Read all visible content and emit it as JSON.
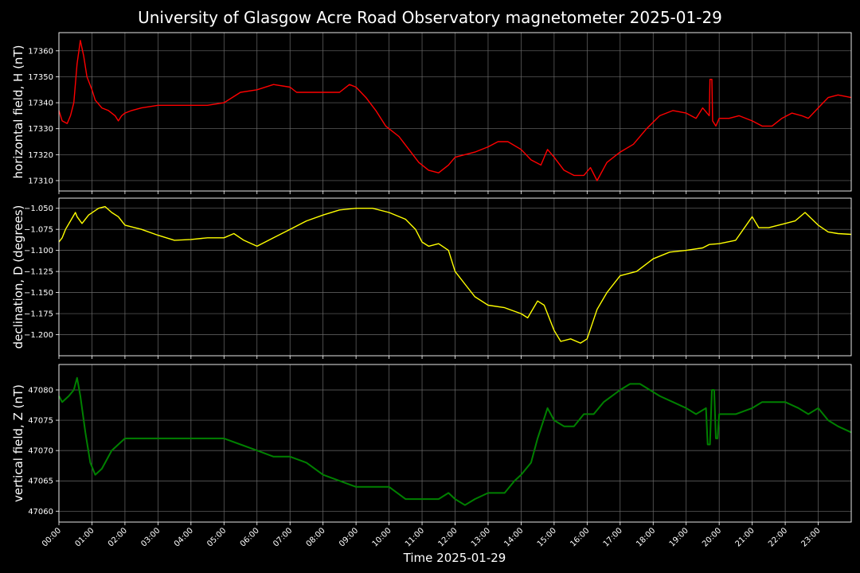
{
  "chart_data": [
    {
      "type": "line",
      "title": "University of Glasgow Acre Road Observatory magnetometer 2025-01-29",
      "ylabel": "horizontal field, H (nT)",
      "color": "#ff0000",
      "ylim": [
        17306,
        17367
      ],
      "yticks": [
        17310,
        17320,
        17330,
        17340,
        17350,
        17360
      ],
      "xlim": [
        0,
        24
      ],
      "x": [
        0,
        0.1,
        0.25,
        0.35,
        0.45,
        0.55,
        0.65,
        0.75,
        0.85,
        1.0,
        1.1,
        1.3,
        1.5,
        1.7,
        1.8,
        1.9,
        2.0,
        2.2,
        2.5,
        3.0,
        3.5,
        4.0,
        4.5,
        5.0,
        5.5,
        6.0,
        6.5,
        7.0,
        7.2,
        7.5,
        8.0,
        8.5,
        8.8,
        9.0,
        9.3,
        9.6,
        9.9,
        10.3,
        10.6,
        10.9,
        11.2,
        11.5,
        11.8,
        12.0,
        12.3,
        12.6,
        13.0,
        13.3,
        13.6,
        14.0,
        14.3,
        14.6,
        14.8,
        15.0,
        15.3,
        15.6,
        15.9,
        16.1,
        16.3,
        16.6,
        17.0,
        17.4,
        17.8,
        18.2,
        18.6,
        19.0,
        19.3,
        19.5,
        19.7,
        19.72,
        19.78,
        19.8,
        19.9,
        20.0,
        20.3,
        20.6,
        21.0,
        21.3,
        21.6,
        21.9,
        22.2,
        22.5,
        22.7,
        23.0,
        23.3,
        23.6,
        24.0
      ],
      "values": [
        17337,
        17333,
        17332,
        17335,
        17340,
        17355,
        17364,
        17358,
        17350,
        17345,
        17341,
        17338,
        17337,
        17335,
        17333,
        17335,
        17336,
        17337,
        17338,
        17339,
        17339,
        17339,
        17339,
        17340,
        17344,
        17345,
        17347,
        17346,
        17344,
        17344,
        17344,
        17344,
        17347,
        17346,
        17342,
        17337,
        17331,
        17327,
        17322,
        17317,
        17314,
        17313,
        17316,
        17319,
        17320,
        17321,
        17323,
        17325,
        17325,
        17322,
        17318,
        17316,
        17322,
        17319,
        17314,
        17312,
        17312,
        17315,
        17310,
        17317,
        17321,
        17324,
        17330,
        17335,
        17337,
        17336,
        17334,
        17338,
        17335,
        17349,
        17349,
        17333,
        17331,
        17334,
        17334,
        17335,
        17333,
        17331,
        17331,
        17334,
        17336,
        17335,
        17334,
        17338,
        17342,
        17343,
        17342
      ]
    },
    {
      "type": "line",
      "ylabel": "declination, D (degrees)",
      "color": "#ffff00",
      "ylim": [
        -1.225,
        -1.038
      ],
      "yticks": [
        -1.05,
        -1.075,
        -1.1,
        -1.125,
        -1.15,
        -1.175,
        -1.2
      ],
      "yticklabels": [
        "−1.050",
        "−1.075",
        "−1.100",
        "−1.125",
        "−1.150",
        "−1.175",
        "−1.200"
      ],
      "xlim": [
        0,
        24
      ],
      "x": [
        0,
        0.1,
        0.2,
        0.35,
        0.5,
        0.55,
        0.7,
        0.9,
        1.2,
        1.4,
        1.6,
        1.8,
        2.0,
        2.5,
        3.0,
        3.5,
        4.0,
        4.5,
        5.0,
        5.3,
        5.6,
        6.0,
        6.5,
        7.0,
        7.5,
        8.0,
        8.5,
        9.0,
        9.5,
        10.0,
        10.5,
        10.8,
        11.0,
        11.2,
        11.5,
        11.8,
        12.0,
        12.3,
        12.6,
        13.0,
        13.5,
        14.0,
        14.2,
        14.5,
        14.7,
        15.0,
        15.2,
        15.5,
        15.8,
        16.0,
        16.3,
        16.6,
        17.0,
        17.5,
        18.0,
        18.5,
        19.0,
        19.5,
        19.7,
        20.0,
        20.5,
        21.0,
        21.2,
        21.5,
        22.0,
        22.3,
        22.6,
        23.0,
        23.3,
        23.6,
        24.0
      ],
      "values": [
        -1.09,
        -1.085,
        -1.075,
        -1.065,
        -1.055,
        -1.06,
        -1.068,
        -1.058,
        -1.05,
        -1.048,
        -1.055,
        -1.06,
        -1.07,
        -1.075,
        -1.082,
        -1.088,
        -1.087,
        -1.085,
        -1.085,
        -1.08,
        -1.088,
        -1.095,
        -1.085,
        -1.075,
        -1.065,
        -1.058,
        -1.052,
        -1.05,
        -1.05,
        -1.055,
        -1.063,
        -1.075,
        -1.09,
        -1.095,
        -1.092,
        -1.1,
        -1.125,
        -1.14,
        -1.155,
        -1.165,
        -1.168,
        -1.175,
        -1.18,
        -1.16,
        -1.165,
        -1.195,
        -1.208,
        -1.205,
        -1.21,
        -1.205,
        -1.17,
        -1.15,
        -1.13,
        -1.125,
        -1.11,
        -1.102,
        -1.1,
        -1.097,
        -1.093,
        -1.092,
        -1.088,
        -1.06,
        -1.073,
        -1.073,
        -1.068,
        -1.065,
        -1.055,
        -1.07,
        -1.078,
        -1.08,
        -1.081
      ]
    },
    {
      "type": "line",
      "xlabel": "Time 2025-01-29",
      "ylabel": "vertical field, Z (nT)",
      "color": "#008000",
      "ylim": [
        47058.2,
        47084.2
      ],
      "yticks": [
        47060,
        47065,
        47070,
        47075,
        47080
      ],
      "xlim": [
        0,
        24
      ],
      "xticks": [
        "00:00",
        "01:00",
        "02:00",
        "03:00",
        "04:00",
        "05:00",
        "06:00",
        "07:00",
        "08:00",
        "09:00",
        "10:00",
        "11:00",
        "12:00",
        "13:00",
        "14:00",
        "15:00",
        "16:00",
        "17:00",
        "18:00",
        "19:00",
        "20:00",
        "21:00",
        "22:00",
        "23:00"
      ],
      "x": [
        0,
        0.1,
        0.3,
        0.45,
        0.55,
        0.65,
        0.8,
        0.95,
        1.1,
        1.3,
        1.6,
        1.8,
        2.0,
        2.5,
        3.0,
        3.5,
        4.0,
        4.5,
        5.0,
        5.5,
        6.0,
        6.5,
        7.0,
        7.5,
        8.0,
        8.5,
        9.0,
        9.5,
        10.0,
        10.5,
        11.0,
        11.5,
        11.8,
        12.0,
        12.3,
        12.6,
        13.0,
        13.5,
        13.8,
        14.0,
        14.3,
        14.5,
        14.8,
        15.0,
        15.3,
        15.6,
        15.9,
        16.2,
        16.5,
        17.0,
        17.3,
        17.6,
        17.9,
        18.2,
        18.6,
        19.0,
        19.3,
        19.6,
        19.65,
        19.72,
        19.78,
        19.85,
        19.9,
        19.95,
        20.0,
        20.5,
        21.0,
        21.3,
        21.6,
        22.0,
        22.4,
        22.7,
        23.0,
        23.3,
        23.6,
        24.0
      ],
      "values": [
        47079,
        47078,
        47079,
        47080,
        47082,
        47079,
        47073,
        47068,
        47066,
        47067,
        47070,
        47071,
        47072,
        47072,
        47072,
        47072,
        47072,
        47072,
        47072,
        47071,
        47070,
        47069,
        47069,
        47068,
        47066,
        47065,
        47064,
        47064,
        47064,
        47062,
        47062,
        47062,
        47063,
        47062,
        47061,
        47062,
        47063,
        47063,
        47065,
        47066,
        47068,
        47072,
        47077,
        47075,
        47074,
        47074,
        47076,
        47076,
        47078,
        47080,
        47081,
        47081,
        47080,
        47079,
        47078,
        47077,
        47076,
        47077,
        47071,
        47071,
        47080,
        47080,
        47072,
        47072,
        47076,
        47076,
        47077,
        47078,
        47078,
        47078,
        47077,
        47076,
        47077,
        47075,
        47074,
        47073
      ]
    }
  ]
}
